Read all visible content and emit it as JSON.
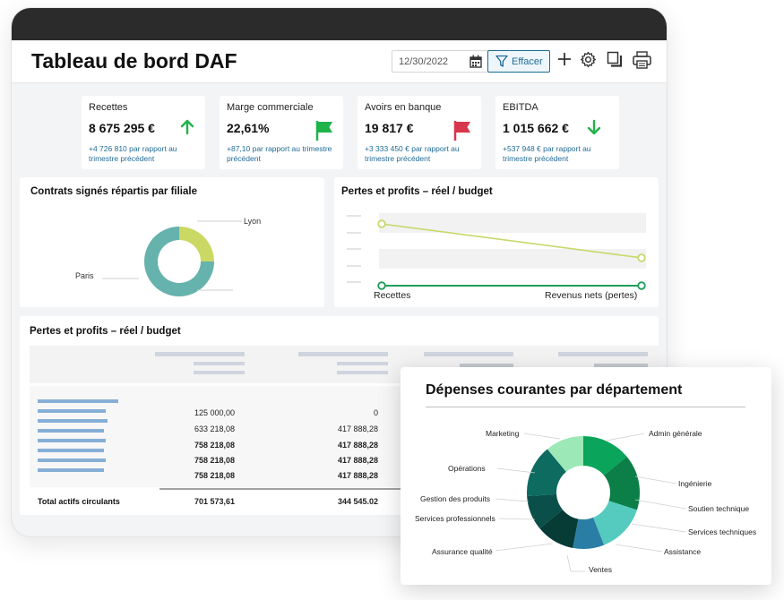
{
  "header": {
    "title": "Tableau de bord DAF",
    "date_value": "12/30/2022",
    "clear_label": "Effacer"
  },
  "kpis": [
    {
      "label": "Recettes",
      "value": "8 675 295 €",
      "sub": "+4 726 810 par rapport au trimestre précédent",
      "indicator": "arrow-up-icon",
      "color": "#1fb34a"
    },
    {
      "label": "Marge commerciale",
      "value": "22,61%",
      "sub": "+87,10 par rapport au trimestre précédent",
      "indicator": "flag-icon",
      "color": "#1fb34a"
    },
    {
      "label": "Avoirs en banque",
      "value": "19 817 €",
      "sub": "+3 333 450 € par rapport au trimestre précédent",
      "indicator": "flag-icon",
      "color": "#d8364b"
    },
    {
      "label": "EBITDA",
      "value": "1 015 662 €",
      "sub": "+537 948 € par rapport au trimestre précédent",
      "indicator": "arrow-down-icon",
      "color": "#1fb34a"
    }
  ],
  "contracts": {
    "title": "Contrats signés répartis par filiale",
    "labels": [
      "Lyon",
      "Paris"
    ]
  },
  "pl_chart": {
    "title": "Pertes et profits – réel / budget",
    "x_labels": [
      "Recettes",
      "Revenus nets (pertes)"
    ]
  },
  "pl_table": {
    "title": "Pertes et profits – réel / budget",
    "col1": [
      "125 000,00",
      "633 218,08",
      "758 218,08",
      "758 218,08",
      "758 218,08"
    ],
    "col2": [
      "0",
      "417 888,28",
      "417 888,28",
      "417 888,28",
      "417 888,28"
    ],
    "total_label": "Total actifs circulants",
    "total_col1": "701 573,61",
    "total_col2": "344 545.02"
  },
  "expenses": {
    "title": "Dépenses courantes par département",
    "labels": {
      "marketing": "Marketing",
      "admin": "Admin générale",
      "operations": "Opérations",
      "ingenierie": "Ingénierie",
      "gestion": "Gestion des produits",
      "soutien": "Soutien technique",
      "services_pro": "Services professionnels",
      "services_tech": "Services techniques",
      "assurance": "Assurance qualité",
      "assistance": "Assistance",
      "ventes": "Ventes"
    }
  },
  "chart_data": [
    {
      "type": "pie",
      "title": "Contrats signés répartis par filiale",
      "categories": [
        "Lyon",
        "Paris"
      ],
      "values": [
        25,
        75
      ],
      "colors": [
        "#cbd964",
        "#66b2ad"
      ]
    },
    {
      "type": "line",
      "title": "Pertes et profits – réel / budget",
      "categories": [
        "Recettes",
        "Revenus nets (pertes)"
      ],
      "series": [
        {
          "values": [
            1.0,
            0.45
          ],
          "color": "#c7d86b"
        },
        {
          "values": [
            0.0,
            0.0
          ],
          "color": "#1f9d5a"
        }
      ],
      "ylim": [
        0,
        1.2
      ]
    },
    {
      "type": "pie",
      "title": "Dépenses courantes par département",
      "categories": [
        "Admin générale",
        "Ingénierie",
        "Services techniques",
        "Ventes",
        "Assurance qualité",
        "Services professionnels",
        "Opérations",
        "Marketing"
      ],
      "values": [
        14,
        16,
        14,
        9,
        11,
        10,
        15,
        11
      ],
      "colors": [
        "#0aa45a",
        "#0b7f47",
        "#55cbc0",
        "#2a7ea6",
        "#063b36",
        "#0a4f4a",
        "#0d6b60",
        "#9ce8b6"
      ]
    }
  ]
}
